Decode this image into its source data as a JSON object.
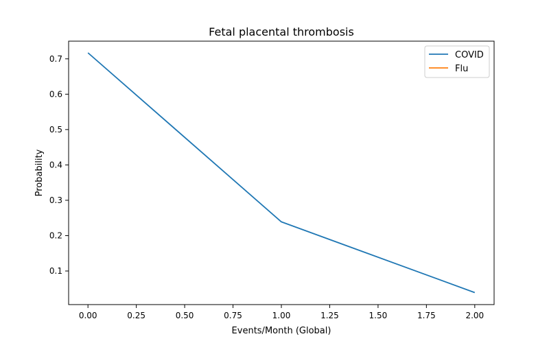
{
  "chart_data": {
    "type": "line",
    "title": "Fetal placental thrombosis",
    "xlabel": "Events/Month (Global)",
    "ylabel": "Probability",
    "xlim": [
      -0.1,
      2.1
    ],
    "ylim": [
      0.005,
      0.75
    ],
    "x_ticks": [
      0.0,
      0.25,
      0.5,
      0.75,
      1.0,
      1.25,
      1.5,
      1.75,
      2.0
    ],
    "x_tick_labels": [
      "0.00",
      "0.25",
      "0.50",
      "0.75",
      "1.00",
      "1.25",
      "1.50",
      "1.75",
      "2.00"
    ],
    "y_ticks": [
      0.1,
      0.2,
      0.3,
      0.4,
      0.5,
      0.6,
      0.7
    ],
    "y_tick_labels": [
      "0.1",
      "0.2",
      "0.3",
      "0.4",
      "0.5",
      "0.6",
      "0.7"
    ],
    "grid": false,
    "legend_position": "top-right",
    "series": [
      {
        "name": "COVID",
        "color": "#1f77b4",
        "x": [
          0,
          1,
          2
        ],
        "y": [
          0.717,
          0.239,
          0.039
        ]
      },
      {
        "name": "Flu",
        "color": "#ff7f0e",
        "x": [],
        "y": []
      }
    ]
  }
}
